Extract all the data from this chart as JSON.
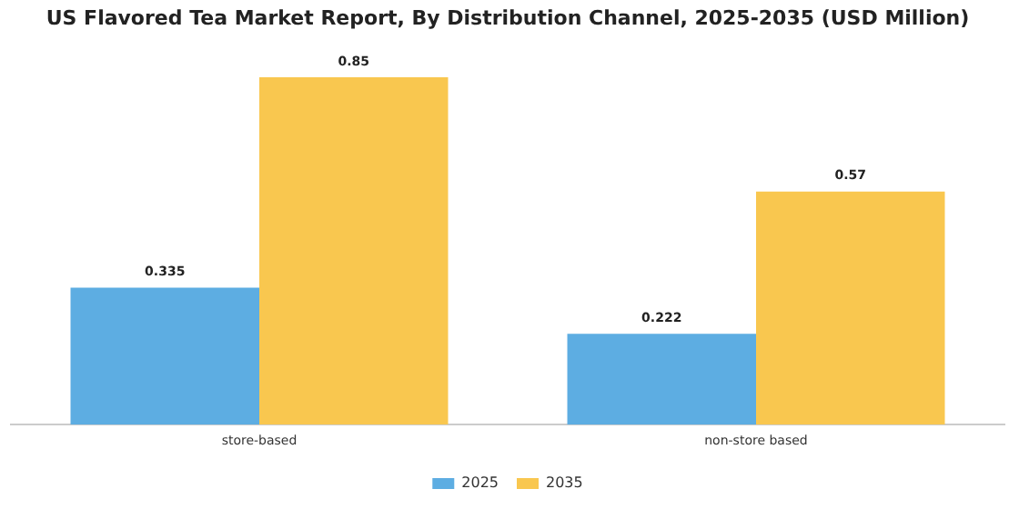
{
  "chart_data": {
    "type": "bar",
    "title": "US Flavored Tea Market Report, By Distribution Channel, 2025-2035 (USD Million)",
    "categories": [
      "store-based",
      "non-store based"
    ],
    "series": [
      {
        "name": "2025",
        "color": "#5dade2",
        "values": [
          0.335,
          0.222
        ]
      },
      {
        "name": "2035",
        "color": "#f9c74f",
        "values": [
          0.85,
          0.57
        ]
      }
    ],
    "data_labels": true,
    "legend": "bottom",
    "grid": false,
    "tick_labels": "x"
  }
}
